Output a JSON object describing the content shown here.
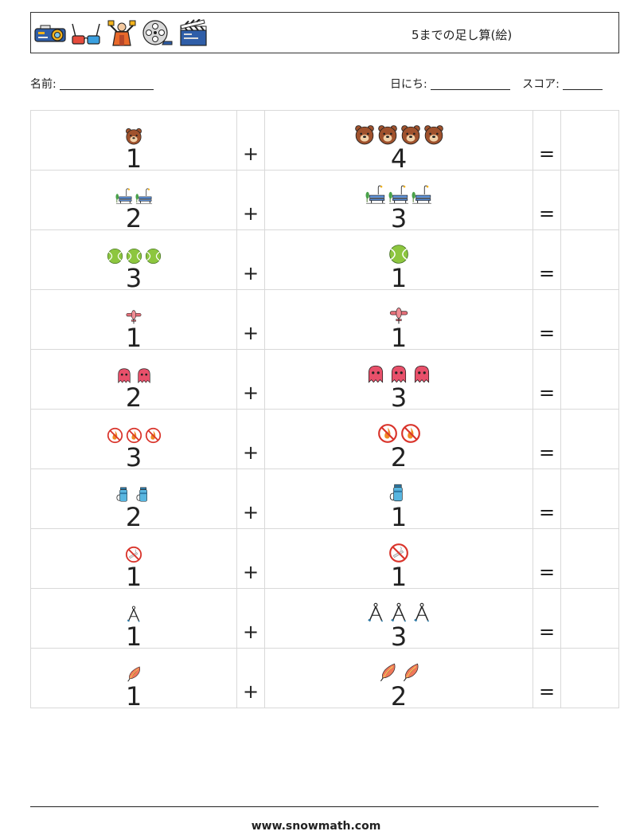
{
  "header": {
    "title": "5までの足し算(絵)",
    "icons": [
      "projector-icon",
      "3d-glasses-icon",
      "director-icon",
      "film-reel-icon",
      "clapperboard-icon"
    ]
  },
  "fields": {
    "name_label": "名前:",
    "date_label": "日にち:",
    "score_label": "スコア:"
  },
  "problems": [
    {
      "a": "1",
      "a_icon": "bear-face",
      "b": "4",
      "b_icon": "bear-face",
      "op": "+",
      "eq": "="
    },
    {
      "a": "2",
      "a_icon": "park-bench",
      "b": "3",
      "b_icon": "park-bench",
      "op": "+",
      "eq": "="
    },
    {
      "a": "3",
      "a_icon": "tennis-ball",
      "b": "1",
      "b_icon": "tennis-ball",
      "op": "+",
      "eq": "="
    },
    {
      "a": "1",
      "a_icon": "airplane",
      "b": "1",
      "b_icon": "airplane",
      "op": "+",
      "eq": "="
    },
    {
      "a": "2",
      "a_icon": "ghost",
      "b": "3",
      "b_icon": "ghost",
      "op": "+",
      "eq": "="
    },
    {
      "a": "3",
      "a_icon": "no-fire",
      "b": "2",
      "b_icon": "no-fire",
      "op": "+",
      "eq": "="
    },
    {
      "a": "2",
      "a_icon": "thermos",
      "b": "1",
      "b_icon": "thermos",
      "op": "+",
      "eq": "="
    },
    {
      "a": "1",
      "a_icon": "no-smoking",
      "b": "1",
      "b_icon": "no-smoking",
      "op": "+",
      "eq": "="
    },
    {
      "a": "1",
      "a_icon": "drawing-compass",
      "b": "3",
      "b_icon": "drawing-compass",
      "op": "+",
      "eq": "="
    },
    {
      "a": "1",
      "a_icon": "feather",
      "b": "2",
      "b_icon": "feather",
      "op": "+",
      "eq": "="
    }
  ],
  "footer": {
    "url": "www.snowmath.com"
  }
}
